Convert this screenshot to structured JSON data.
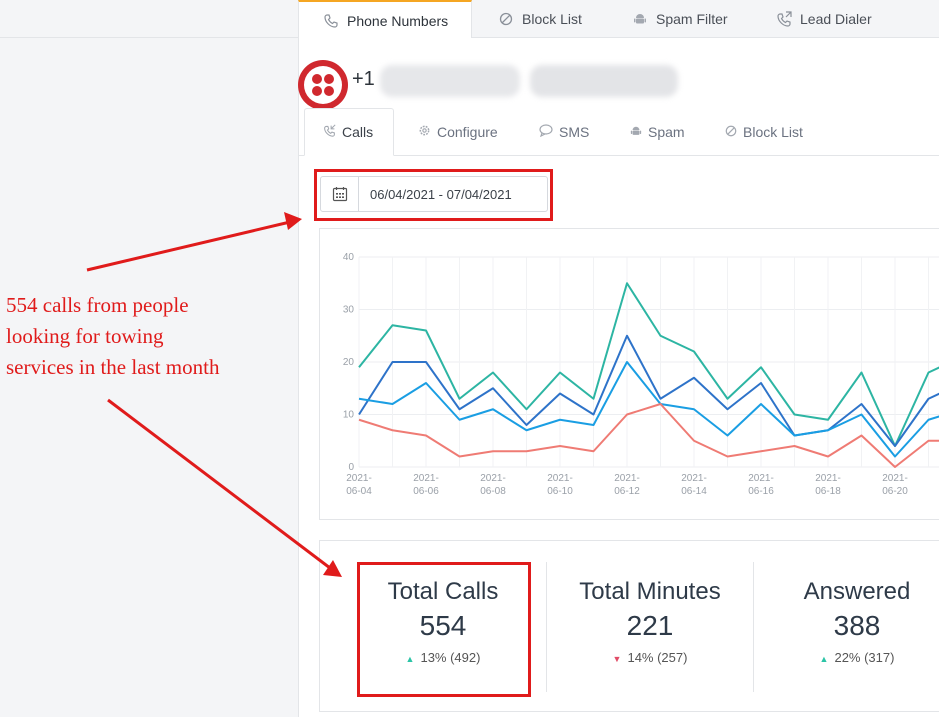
{
  "top_tabs": [
    {
      "label": "Phone Numbers",
      "icon": "phone-icon",
      "active": true
    },
    {
      "label": "Block List",
      "icon": "block-icon",
      "active": false
    },
    {
      "label": "Spam Filter",
      "icon": "android-icon",
      "active": false
    },
    {
      "label": "Lead Dialer",
      "icon": "phone-outgoing-icon",
      "active": false
    }
  ],
  "number": {
    "prefix": "+1"
  },
  "sub_tabs": [
    {
      "label": "Calls",
      "icon": "phone-incoming-icon",
      "active": true
    },
    {
      "label": "Configure",
      "icon": "gear-icon"
    },
    {
      "label": "SMS",
      "icon": "chat-icon"
    },
    {
      "label": "Spam",
      "icon": "android-icon"
    },
    {
      "label": "Block List",
      "icon": "block-icon"
    }
  ],
  "date_range": "06/04/2021 - 07/04/2021",
  "chart_data": {
    "type": "line",
    "x": [
      "2021-06-04",
      "2021-06-05",
      "2021-06-06",
      "2021-06-07",
      "2021-06-08",
      "2021-06-09",
      "2021-06-10",
      "2021-06-11",
      "2021-06-12",
      "2021-06-13",
      "2021-06-14",
      "2021-06-15",
      "2021-06-16",
      "2021-06-17",
      "2021-06-18",
      "2021-06-19",
      "2021-06-20",
      "2021-06-21",
      "2021-06-22"
    ],
    "x_tick_labels": [
      [
        "2021-",
        "06-04"
      ],
      [
        "2021-",
        "06-06"
      ],
      [
        "2021-",
        "06-08"
      ],
      [
        "2021-",
        "06-10"
      ],
      [
        "2021-",
        "06-12"
      ],
      [
        "2021-",
        "06-14"
      ],
      [
        "2021-",
        "06-16"
      ],
      [
        "2021-",
        "06-18"
      ],
      [
        "2021-",
        "06-20"
      ]
    ],
    "y_ticks": [
      "0",
      "10",
      "20",
      "30",
      "40"
    ],
    "ylim": [
      0,
      40
    ],
    "grid": true,
    "series": [
      {
        "color": "#2db5a3",
        "values": [
          19,
          27,
          26,
          13,
          18,
          11,
          18,
          13,
          35,
          25,
          22,
          13,
          19,
          10,
          9,
          18,
          4,
          18,
          21
        ]
      },
      {
        "color": "#2e73c9",
        "values": [
          10,
          20,
          20,
          11,
          15,
          8,
          14,
          10,
          25,
          13,
          17,
          11,
          16,
          6,
          7,
          12,
          4,
          13,
          16
        ]
      },
      {
        "color": "#1a9ee3",
        "values": [
          13,
          12,
          16,
          9,
          11,
          7,
          9,
          8,
          20,
          12,
          11,
          6,
          12,
          6,
          7,
          10,
          2,
          9,
          11
        ]
      },
      {
        "color": "#ef7b74",
        "values": [
          9,
          7,
          6,
          2,
          3,
          3,
          4,
          3,
          10,
          12,
          5,
          2,
          3,
          4,
          2,
          6,
          0,
          5,
          5
        ]
      }
    ]
  },
  "stats": [
    {
      "label": "Total Calls",
      "value": "554",
      "direction": "up",
      "delta": "13% (492)"
    },
    {
      "label": "Total Minutes",
      "value": "221",
      "direction": "down",
      "delta": "14% (257)"
    },
    {
      "label": "Answered",
      "value": "388",
      "direction": "up",
      "delta": "22% (317)"
    }
  ],
  "annotation": {
    "lines": [
      "554 calls from people",
      "looking for towing",
      "services in the last month"
    ],
    "color": "#e01b1b"
  }
}
